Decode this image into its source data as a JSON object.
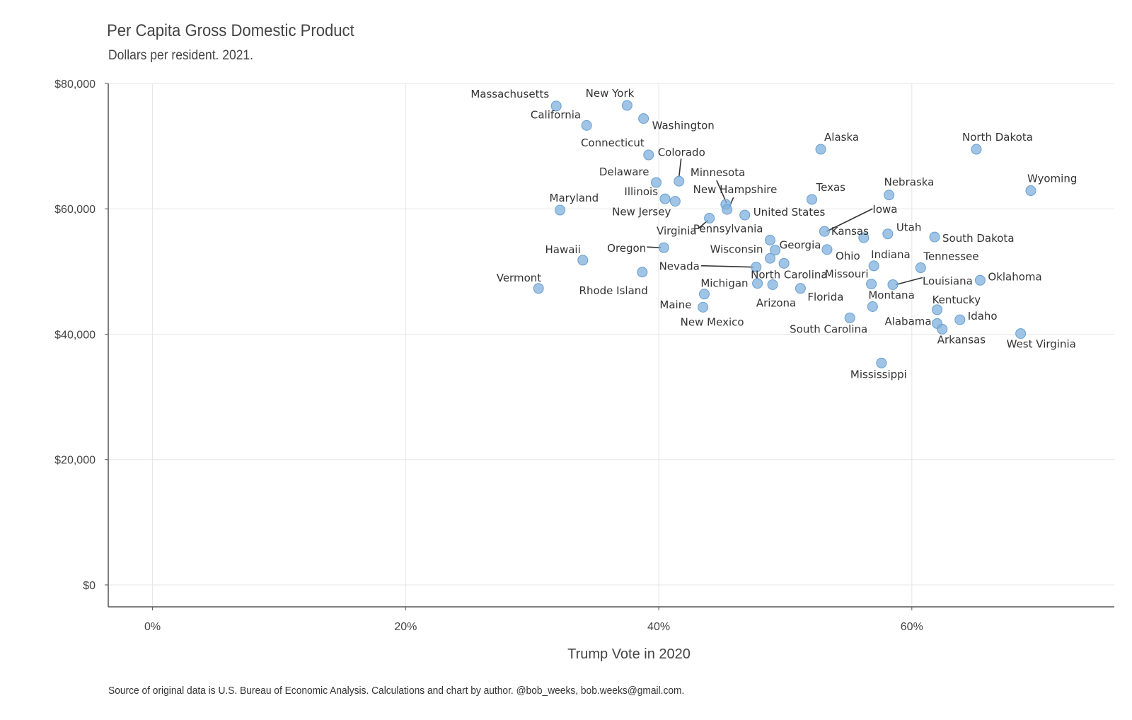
{
  "title": "Per Capita Gross Domestic Product",
  "subtitle": "Dollars per resident. 2021.",
  "caption": "Source of original data is U.S. Bureau of Economic Analysis. Calculations and chart by author. @bob_weeks, bob.weeks@gmail.com.",
  "colors": {
    "point": "#7fb0dc",
    "point_stroke": "#6a9fd0",
    "grid": "#e6e6e6",
    "axis": "#555555",
    "text": "#333333"
  },
  "chart_data": {
    "type": "scatter",
    "xlabel": "Trump Vote in 2020",
    "ylabel": "",
    "xlim": [
      -0.035,
      0.76
    ],
    "ylim": [
      -3500,
      80000
    ],
    "x_ticks": [
      {
        "value": 0,
        "label": "0%"
      },
      {
        "value": 0.2,
        "label": "20%"
      },
      {
        "value": 0.4,
        "label": "40%"
      },
      {
        "value": 0.6,
        "label": "60%"
      }
    ],
    "y_ticks": [
      {
        "value": 0,
        "label": "$0"
      },
      {
        "value": 20000,
        "label": "$20,000"
      },
      {
        "value": 40000,
        "label": "$40,000"
      },
      {
        "value": 60000,
        "label": "$60,000"
      },
      {
        "value": 80000,
        "label": "$80,000"
      }
    ],
    "grid": true,
    "points": [
      {
        "label": "Massachusetts",
        "x": 0.319,
        "y": 76400
      },
      {
        "label": "New York",
        "x": 0.375,
        "y": 76500
      },
      {
        "label": "California",
        "x": 0.343,
        "y": 73300
      },
      {
        "label": "Washington",
        "x": 0.388,
        "y": 74400
      },
      {
        "label": "Connecticut",
        "x": 0.392,
        "y": 68600
      },
      {
        "label": "Colorado",
        "x": 0.416,
        "y": 64400
      },
      {
        "label": "Delaware",
        "x": 0.398,
        "y": 64200
      },
      {
        "label": "Minnesota",
        "x": 0.453,
        "y": 60700
      },
      {
        "label": "New Hampshire",
        "x": 0.454,
        "y": 59900
      },
      {
        "label": "Illinois",
        "x": 0.405,
        "y": 61600
      },
      {
        "label": "New Jersey",
        "x": 0.413,
        "y": 61200
      },
      {
        "label": "Maryland",
        "x": 0.322,
        "y": 59800
      },
      {
        "label": "United States",
        "x": 0.468,
        "y": 59000
      },
      {
        "label": "Virginia",
        "x": 0.44,
        "y": 58500
      },
      {
        "label": "Alaska",
        "x": 0.528,
        "y": 69500
      },
      {
        "label": "North Dakota",
        "x": 0.651,
        "y": 69500
      },
      {
        "label": "Wyoming",
        "x": 0.694,
        "y": 62900
      },
      {
        "label": "Texas",
        "x": 0.521,
        "y": 61500
      },
      {
        "label": "Nebraska",
        "x": 0.582,
        "y": 62200
      },
      {
        "label": "Iowa",
        "x": 0.531,
        "y": 56400
      },
      {
        "label": "Kansas",
        "x": 0.562,
        "y": 55400
      },
      {
        "label": "Utah",
        "x": 0.581,
        "y": 56000
      },
      {
        "label": "South Dakota",
        "x": 0.618,
        "y": 55500
      },
      {
        "label": "Pennsylvania",
        "x": 0.488,
        "y": 55000
      },
      {
        "label": "Georgia",
        "x": 0.492,
        "y": 53400
      },
      {
        "label": "Ohio",
        "x": 0.533,
        "y": 53500
      },
      {
        "label": "Wisconsin",
        "x": 0.488,
        "y": 52100
      },
      {
        "label": "Oregon",
        "x": 0.404,
        "y": 53800
      },
      {
        "label": "Hawaii",
        "x": 0.34,
        "y": 51800
      },
      {
        "label": "Indiana",
        "x": 0.57,
        "y": 50900
      },
      {
        "label": "Tennessee",
        "x": 0.607,
        "y": 50600
      },
      {
        "label": "Nevada",
        "x": 0.477,
        "y": 50700
      },
      {
        "label": "North Carolina",
        "x": 0.499,
        "y": 51300
      },
      {
        "label": "Rhode Island",
        "x": 0.387,
        "y": 49900
      },
      {
        "label": "Vermont",
        "x": 0.305,
        "y": 47300
      },
      {
        "label": "Michigan",
        "x": 0.478,
        "y": 48100
      },
      {
        "label": "Arizona",
        "x": 0.49,
        "y": 47900
      },
      {
        "label": "Florida",
        "x": 0.512,
        "y": 47300
      },
      {
        "label": "Missouri",
        "x": 0.568,
        "y": 48000
      },
      {
        "label": "Louisiana",
        "x": 0.585,
        "y": 47900
      },
      {
        "label": "Oklahoma",
        "x": 0.654,
        "y": 48600
      },
      {
        "label": "Maine",
        "x": 0.436,
        "y": 46400
      },
      {
        "label": "New Mexico",
        "x": 0.435,
        "y": 44300
      },
      {
        "label": "Montana",
        "x": 0.569,
        "y": 44400
      },
      {
        "label": "Kentucky",
        "x": 0.62,
        "y": 43900
      },
      {
        "label": "Idaho",
        "x": 0.638,
        "y": 42300
      },
      {
        "label": "South Carolina",
        "x": 0.551,
        "y": 42600
      },
      {
        "label": "Alabama",
        "x": 0.62,
        "y": 41700
      },
      {
        "label": "Arkansas",
        "x": 0.624,
        "y": 40800
      },
      {
        "label": "West Virginia",
        "x": 0.686,
        "y": 40100
      },
      {
        "label": "Mississippi",
        "x": 0.576,
        "y": 35400
      }
    ]
  }
}
